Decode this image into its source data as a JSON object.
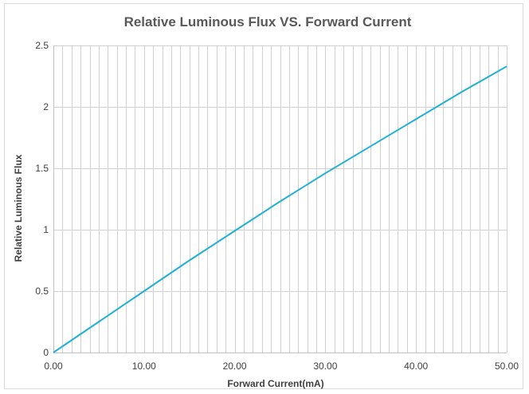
{
  "chart_data": {
    "type": "line",
    "title": "Relative Luminous Flux VS. Forward Current",
    "xlabel": "Forward Current(mA)",
    "ylabel": "Relative Luminous Flux",
    "xlim": [
      0,
      50
    ],
    "ylim": [
      0,
      2.5
    ],
    "x_ticks": [
      0,
      10,
      20,
      30,
      40,
      50
    ],
    "x_tick_labels": [
      "0.00",
      "10.00",
      "20.00",
      "30.00",
      "40.00",
      "50.00"
    ],
    "y_ticks": [
      0,
      0.5,
      1,
      1.5,
      2,
      2.5
    ],
    "y_tick_labels": [
      "0",
      "0.5",
      "1",
      "1.5",
      "2",
      "2.5"
    ],
    "x_minor_grid_step": 1,
    "y_grid_step": 0.5,
    "grid": true,
    "legend": "none",
    "series": [
      {
        "color": "#1fb0d8",
        "x": [
          0,
          5,
          10,
          15,
          20,
          25,
          30,
          35,
          40,
          45,
          50
        ],
        "y": [
          0,
          0.25,
          0.5,
          0.75,
          0.99,
          1.23,
          1.46,
          1.68,
          1.9,
          2.12,
          2.33
        ]
      }
    ]
  }
}
